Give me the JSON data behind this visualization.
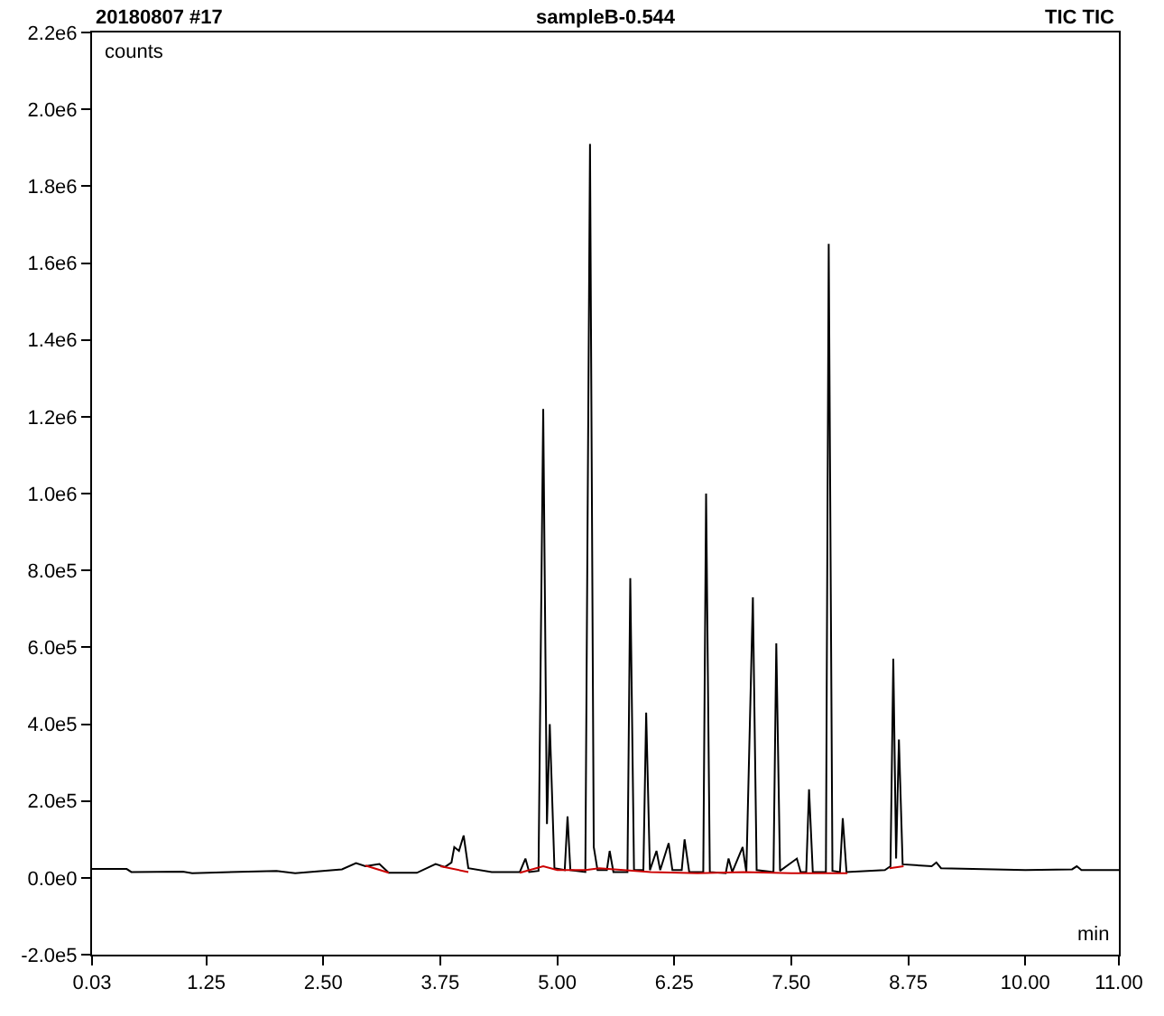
{
  "chart_data": {
    "type": "line",
    "title": "sampleB-0.544",
    "xlabel": "min",
    "ylabel": "counts",
    "annotations": [
      "20180807 #17",
      "TIC TIC"
    ],
    "xlim": [
      0.03,
      11.0
    ],
    "xticks": [
      0.03,
      1.25,
      {
        "value": 2.5,
        "label": "2.50"
      },
      3.75,
      {
        "value": 5.0,
        "label": "5.00"
      },
      6.25,
      {
        "value": 7.5,
        "label": "7.50"
      },
      8.75,
      {
        "value": 10.0,
        "label": "10.00"
      },
      {
        "value": 11.0,
        "label": "11.00"
      }
    ],
    "ylim": [
      -200000,
      2200000
    ],
    "yticks": [
      {
        "value": -200000,
        "label": "-2.0e5"
      },
      {
        "value": 0,
        "label": "0.0e0"
      },
      {
        "value": 200000,
        "label": "2.0e5"
      },
      {
        "value": 400000,
        "label": "4.0e5"
      },
      {
        "value": 600000,
        "label": "6.0e5"
      },
      {
        "value": 800000,
        "label": "8.0e5"
      },
      {
        "value": 1000000,
        "label": "1.0e6"
      },
      {
        "value": 1200000,
        "label": "1.2e6"
      },
      {
        "value": 1400000,
        "label": "1.4e6"
      },
      {
        "value": 1600000,
        "label": "1.6e6"
      },
      {
        "value": 1800000,
        "label": "1.8e6"
      },
      {
        "value": 2000000,
        "label": "2.0e6"
      },
      {
        "value": 2200000,
        "label": "2.2e6"
      }
    ],
    "marker": "none",
    "line_style": "solid",
    "series": [
      {
        "color": "#000000",
        "x": [
          0.03,
          0.4,
          0.45,
          1.0,
          1.1,
          2.0,
          2.2,
          2.7,
          2.85,
          2.95,
          3.1,
          3.2,
          3.5,
          3.7,
          3.8,
          3.87,
          3.9,
          3.95,
          4.0,
          4.05,
          4.3,
          4.6,
          4.66,
          4.7,
          4.8,
          4.85,
          4.89,
          4.92,
          4.97,
          5.08,
          5.11,
          5.14,
          5.3,
          5.35,
          5.39,
          5.43,
          5.53,
          5.56,
          5.6,
          5.75,
          5.78,
          5.82,
          5.92,
          5.95,
          5.99,
          6.06,
          6.1,
          6.19,
          6.23,
          6.33,
          6.36,
          6.41,
          6.56,
          6.59,
          6.63,
          6.8,
          6.83,
          6.87,
          6.98,
          7.02,
          7.09,
          7.13,
          7.31,
          7.34,
          7.38,
          7.56,
          7.6,
          7.66,
          7.69,
          7.73,
          7.87,
          7.9,
          7.94,
          8.02,
          8.05,
          8.09,
          8.5,
          8.56,
          8.59,
          8.62,
          8.65,
          8.69,
          9.0,
          9.05,
          9.1,
          10.0,
          10.5,
          10.55,
          10.6,
          11.0
        ],
        "values": [
          23000,
          23000,
          15000,
          16000,
          12000,
          18000,
          12000,
          22000,
          38000,
          30000,
          36000,
          13000,
          13000,
          36000,
          28000,
          40000,
          80000,
          70000,
          110000,
          25000,
          15000,
          15000,
          50000,
          15000,
          18000,
          1220000,
          140000,
          400000,
          25000,
          20000,
          160000,
          20000,
          15000,
          1910000,
          80000,
          20000,
          20000,
          70000,
          15000,
          15000,
          780000,
          20000,
          20000,
          430000,
          20000,
          70000,
          20000,
          90000,
          20000,
          20000,
          100000,
          15000,
          15000,
          1000000,
          15000,
          12000,
          50000,
          15000,
          80000,
          15000,
          730000,
          20000,
          15000,
          610000,
          18000,
          50000,
          15000,
          15000,
          230000,
          15000,
          15000,
          1650000,
          18000,
          15000,
          155000,
          15000,
          20000,
          30000,
          570000,
          50000,
          360000,
          35000,
          30000,
          40000,
          25000,
          20000,
          22000,
          30000,
          20000,
          20000
        ]
      },
      {
        "color": "#cc0000",
        "x": [
          2.95,
          3.2,
          3.3,
          3.75,
          4.05,
          4.1,
          4.6,
          4.85,
          5.0,
          5.3,
          5.45,
          6.0,
          6.5,
          7.0,
          7.5,
          8.1,
          8.3,
          8.55,
          8.7
        ],
        "values": [
          32000,
          13000,
          null,
          30000,
          15000,
          null,
          13000,
          30000,
          20000,
          20000,
          25000,
          15000,
          12000,
          15000,
          12000,
          12000,
          null,
          25000,
          30000
        ]
      }
    ]
  }
}
